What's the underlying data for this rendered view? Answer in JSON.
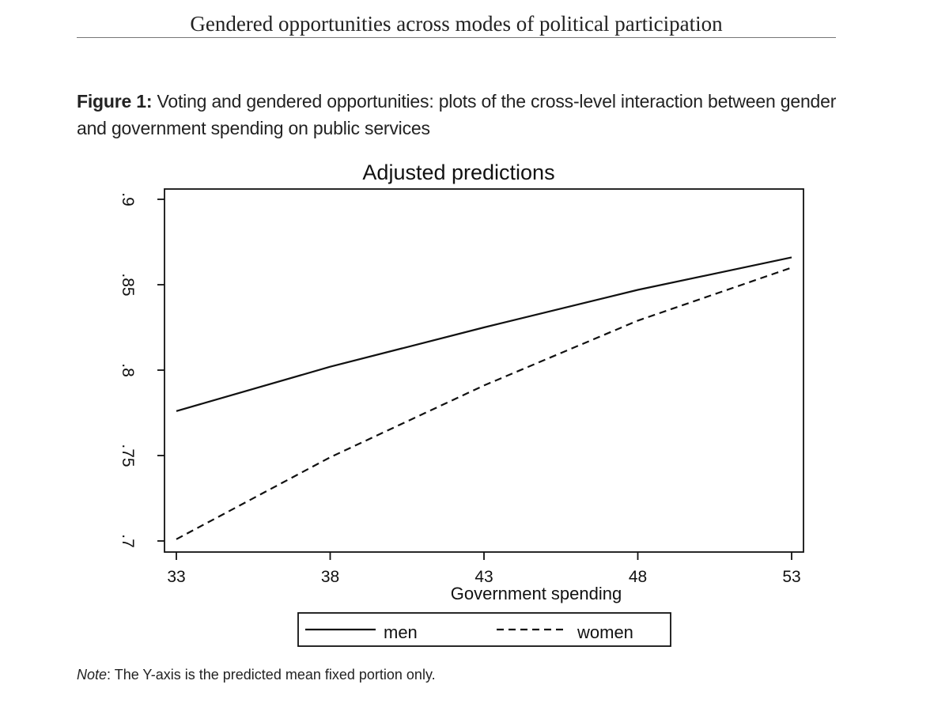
{
  "page": {
    "running_header": "Gendered opportunities across modes of political participation",
    "figure_label": "Figure 1:",
    "figure_caption": "Voting and gendered opportunities: plots of the cross-level interaction between gender and government spending on public services",
    "note_label": "Note",
    "note_text": ": The Y-axis is the predicted mean fixed portion only."
  },
  "chart_data": {
    "type": "line",
    "title": "Adjusted predictions",
    "xlabel": "Government spending",
    "ylabel": "",
    "x": [
      33,
      38,
      43,
      48,
      53
    ],
    "xlim": [
      33,
      53
    ],
    "ylim": [
      0.7,
      0.92
    ],
    "x_ticks": [
      33,
      38,
      43,
      48,
      53
    ],
    "x_tick_labels": [
      "33",
      "38",
      "43",
      "48",
      "53"
    ],
    "y_ticks": [
      0.7,
      0.75,
      0.8,
      0.85,
      0.9
    ],
    "y_tick_labels": [
      ".7",
      ".75",
      ".8",
      ".85",
      ".9"
    ],
    "grid": false,
    "legend_position": "bottom",
    "series": [
      {
        "name": "men",
        "style": "solid",
        "color": "#111111",
        "values": [
          0.776,
          0.802,
          0.825,
          0.847,
          0.866
        ]
      },
      {
        "name": "women",
        "style": "dashed",
        "color": "#111111",
        "values": [
          0.701,
          0.749,
          0.791,
          0.829,
          0.86
        ]
      }
    ]
  }
}
